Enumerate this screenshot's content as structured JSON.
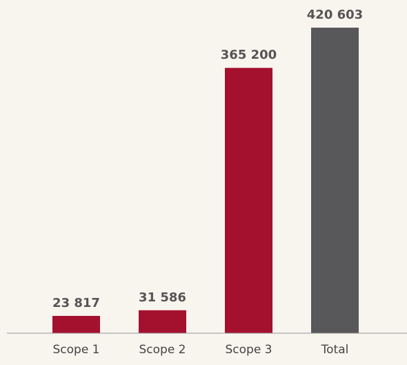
{
  "chart_data": {
    "type": "bar",
    "categories": [
      "Scope 1",
      "Scope 2",
      "Scope 3",
      "Total"
    ],
    "values": [
      23817,
      31586,
      365200,
      420603
    ],
    "value_labels": [
      "23 817",
      "31 586",
      "365 200",
      "420 603"
    ],
    "colors": [
      "#a4112f",
      "#a4112f",
      "#a4112f",
      "#58585a"
    ]
  }
}
